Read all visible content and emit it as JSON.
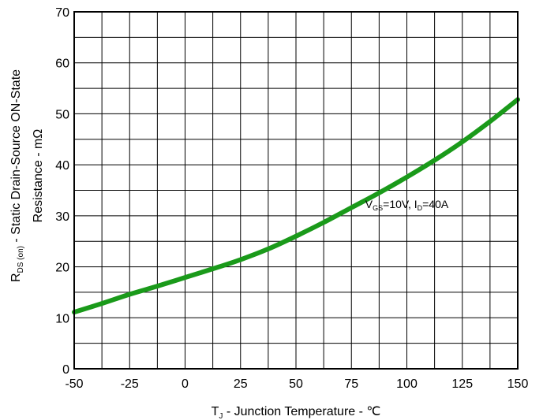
{
  "chart_data": {
    "type": "line",
    "xlabel": {
      "main": "T",
      "sub": "J",
      "rest": " - Junction Temperature - ℃"
    },
    "ylabel": {
      "line1_main": "R",
      "line1_sub": "DS (on)",
      "line1_rest": " - Static Drain-Source ON-State",
      "line2": "Resistance - mΩ"
    },
    "xlim": [
      -50,
      150
    ],
    "ylim": [
      0,
      70
    ],
    "x_ticks": [
      -50,
      -25,
      0,
      25,
      50,
      75,
      100,
      125,
      150
    ],
    "y_ticks": [
      0,
      10,
      20,
      30,
      40,
      50,
      60,
      70
    ],
    "x_minor_step": 12.5,
    "y_minor_step": 5,
    "grid": true,
    "line_color": "#1a9a1a",
    "annotation": {
      "v_main": "V",
      "v_sub": "GS",
      "v_rest": "=10V, I",
      "i_sub": "D",
      "i_rest": "=40A",
      "x": 100,
      "y": 31.5
    },
    "series": [
      {
        "x": [
          -50,
          -37.5,
          -25,
          -12.5,
          0,
          12.5,
          25,
          37.5,
          50,
          62.5,
          75,
          87.5,
          100,
          112.5,
          125,
          137.5,
          150
        ],
        "values": [
          11.1,
          12.8,
          14.6,
          16.2,
          17.9,
          19.6,
          21.4,
          23.5,
          26.0,
          28.7,
          31.6,
          34.5,
          37.6,
          40.9,
          44.5,
          48.5,
          52.8
        ]
      }
    ]
  }
}
